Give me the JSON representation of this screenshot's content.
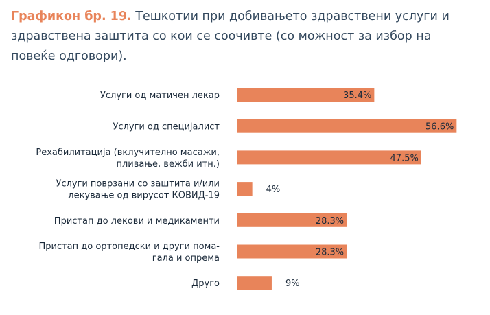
{
  "title_prefix": "Графикон бр. 19.",
  "title_text": "Тешкотии при добивањето здравствени услуги и здравствена заштита со кои се соочивте (со можност за избор на повеќе одговори).",
  "colors": {
    "bar": "#e8845a",
    "title_accent": "#e8845a",
    "text": "#1b2a3a"
  },
  "chart_data": {
    "type": "bar",
    "orientation": "horizontal",
    "categories": [
      [
        "Услуги од матичен лекар"
      ],
      [
        "Услуги од специјалист"
      ],
      [
        "Рехабилитација (вклучително масажи,",
        "пливање, вежби итн.)"
      ],
      [
        "Услуги поврзани со заштита и/или",
        "лекување од вирусот КОВИД-19"
      ],
      [
        "Пристап до лекови и медикаменти"
      ],
      [
        "Пристап до ортопедски и други пома-",
        "гала и опрема"
      ],
      [
        "Друго"
      ]
    ],
    "values": [
      35.4,
      56.6,
      47.5,
      4,
      28.3,
      28.3,
      9
    ],
    "value_labels": [
      "35.4%",
      "56.6%",
      "47.5%",
      "4%",
      "28.3%",
      "28.3%",
      "9%"
    ],
    "xlim": [
      0,
      60
    ],
    "grid": false,
    "legend": "none"
  }
}
